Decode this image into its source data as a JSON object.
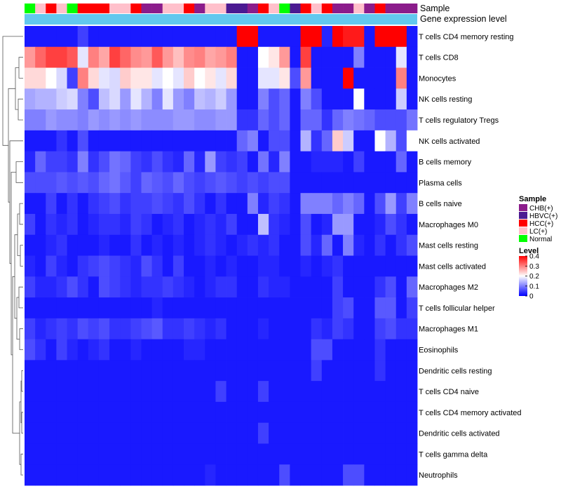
{
  "chart_data": {
    "type": "heatmap",
    "top_tracks": [
      "Sample",
      "Gene expression level"
    ],
    "gene_expression_level_color": "#62c8ee",
    "sample_colors": {
      "CHB(+)": "#8b1c8b",
      "HBVC(+)": "#4b1a92",
      "HCC(+)": "#ff0000",
      "LC(+)": "#ffc0cb",
      "Normal": "#00ff00"
    },
    "samples": [
      "Normal",
      "LC(+)",
      "HCC(+)",
      "LC(+)",
      "Normal",
      "HCC(+)",
      "HCC(+)",
      "HCC(+)",
      "LC(+)",
      "LC(+)",
      "HCC(+)",
      "CHB(+)",
      "CHB(+)",
      "LC(+)",
      "LC(+)",
      "HCC(+)",
      "CHB(+)",
      "LC(+)",
      "LC(+)",
      "HBVC(+)",
      "HBVC(+)",
      "CHB(+)",
      "HCC(+)",
      "LC(+)",
      "Normal",
      "HBVC(+)",
      "HCC(+)",
      "LC(+)",
      "HCC(+)",
      "CHB(+)",
      "CHB(+)",
      "LC(+)",
      "CHB(+)",
      "HCC(+)",
      "CHB(+)",
      "CHB(+)",
      "CHB(+)"
    ],
    "rows": [
      "T cells CD4 memory resting",
      "T cells CD8",
      "Monocytes",
      "NK cells resting",
      "T cells regulatory  Tregs",
      "NK cells activated",
      "B cells memory",
      "Plasma cells",
      "B cells naive",
      "Macrophages M0",
      "Mast cells resting",
      "Mast cells activated",
      "Macrophages M2",
      "T cells follicular helper",
      "Macrophages M1",
      "Eosinophils",
      "Dendritic cells resting",
      "T cells CD4 naive",
      "T cells CD4 memory activated",
      "Dendritic cells activated",
      "T cells gamma delta",
      "Neutrophils"
    ],
    "values": [
      [
        0.02,
        0.02,
        0.02,
        0.02,
        0.02,
        0.05,
        0.02,
        0.02,
        0.02,
        0.02,
        0.02,
        0.02,
        0.02,
        0.02,
        0.02,
        0.02,
        0.02,
        0.02,
        0.02,
        0.02,
        0.4,
        0.4,
        0.02,
        0.02,
        0.02,
        0.02,
        0.4,
        0.4,
        0.03,
        0.4,
        0.38,
        0.38,
        0.02,
        0.4,
        0.4,
        0.4,
        0.02
      ],
      [
        0.28,
        0.32,
        0.35,
        0.35,
        0.33,
        0.18,
        0.3,
        0.27,
        0.35,
        0.32,
        0.29,
        0.28,
        0.33,
        0.28,
        0.25,
        0.29,
        0.3,
        0.27,
        0.28,
        0.3,
        0.02,
        0.02,
        0.2,
        0.22,
        0.28,
        0.02,
        0.35,
        0.02,
        0.02,
        0.02,
        0.02,
        0.1,
        0.02,
        0.02,
        0.02,
        0.18,
        0.02
      ],
      [
        0.23,
        0.23,
        0.2,
        0.17,
        0.05,
        0.3,
        0.23,
        0.18,
        0.17,
        0.24,
        0.22,
        0.22,
        0.18,
        0.2,
        0.18,
        0.24,
        0.2,
        0.22,
        0.18,
        0.23,
        0.02,
        0.02,
        0.18,
        0.18,
        0.22,
        0.06,
        0.28,
        0.02,
        0.02,
        0.02,
        0.4,
        0.02,
        0.02,
        0.02,
        0.02,
        0.3,
        0.02
      ],
      [
        0.13,
        0.14,
        0.14,
        0.16,
        0.17,
        0.1,
        0.06,
        0.15,
        0.17,
        0.12,
        0.18,
        0.14,
        0.1,
        0.18,
        0.12,
        0.1,
        0.15,
        0.14,
        0.16,
        0.12,
        0.02,
        0.02,
        0.1,
        0.06,
        0.08,
        0.02,
        0.1,
        0.06,
        0.02,
        0.02,
        0.02,
        0.2,
        0.02,
        0.02,
        0.02,
        0.16,
        0.02
      ],
      [
        0.1,
        0.1,
        0.12,
        0.11,
        0.11,
        0.1,
        0.12,
        0.11,
        0.12,
        0.11,
        0.12,
        0.11,
        0.11,
        0.11,
        0.12,
        0.12,
        0.11,
        0.11,
        0.12,
        0.12,
        0.04,
        0.04,
        0.08,
        0.06,
        0.08,
        0.02,
        0.08,
        0.08,
        0.04,
        0.08,
        0.1,
        0.09,
        0.08,
        0.06,
        0.06,
        0.06,
        0.09
      ],
      [
        0.02,
        0.02,
        0.02,
        0.04,
        0.02,
        0.06,
        0.02,
        0.02,
        0.02,
        0.02,
        0.02,
        0.02,
        0.02,
        0.02,
        0.02,
        0.02,
        0.02,
        0.02,
        0.02,
        0.02,
        0.08,
        0.1,
        0.02,
        0.06,
        0.06,
        0.02,
        0.14,
        0.04,
        0.08,
        0.24,
        0.16,
        0.02,
        0.02,
        0.2,
        0.14,
        0.06,
        0.2
      ],
      [
        0.03,
        0.08,
        0.05,
        0.05,
        0.04,
        0.1,
        0.04,
        0.06,
        0.09,
        0.08,
        0.05,
        0.04,
        0.06,
        0.04,
        0.03,
        0.08,
        0.03,
        0.12,
        0.05,
        0.04,
        0.05,
        0.02,
        0.09,
        0.03,
        0.1,
        0.02,
        0.02,
        0.03,
        0.03,
        0.03,
        0.02,
        0.05,
        0.02,
        0.02,
        0.02,
        0.08,
        0.02
      ],
      [
        0.06,
        0.06,
        0.06,
        0.07,
        0.06,
        0.07,
        0.06,
        0.08,
        0.09,
        0.07,
        0.05,
        0.08,
        0.07,
        0.06,
        0.08,
        0.06,
        0.05,
        0.06,
        0.07,
        0.06,
        0.05,
        0.06,
        0.05,
        0.06,
        0.06,
        0.02,
        0.02,
        0.02,
        0.02,
        0.02,
        0.02,
        0.02,
        0.02,
        0.02,
        0.02,
        0.02,
        0.02
      ],
      [
        0.02,
        0.02,
        0.05,
        0.02,
        0.04,
        0.02,
        0.04,
        0.05,
        0.06,
        0.04,
        0.05,
        0.05,
        0.06,
        0.05,
        0.04,
        0.06,
        0.04,
        0.02,
        0.04,
        0.02,
        0.02,
        0.1,
        0.03,
        0.05,
        0.04,
        0.02,
        0.1,
        0.1,
        0.1,
        0.08,
        0.1,
        0.08,
        0.02,
        0.06,
        0.12,
        0.05,
        0.1
      ],
      [
        0.05,
        0.02,
        0.04,
        0.03,
        0.04,
        0.02,
        0.03,
        0.04,
        0.04,
        0.03,
        0.05,
        0.04,
        0.02,
        0.03,
        0.04,
        0.02,
        0.03,
        0.04,
        0.03,
        0.05,
        0.02,
        0.02,
        0.15,
        0.04,
        0.03,
        0.02,
        0.06,
        0.02,
        0.03,
        0.12,
        0.12,
        0.02,
        0.02,
        0.03,
        0.06,
        0.04,
        0.02
      ],
      [
        0.02,
        0.02,
        0.03,
        0.04,
        0.02,
        0.02,
        0.02,
        0.03,
        0.02,
        0.02,
        0.04,
        0.02,
        0.03,
        0.02,
        0.03,
        0.02,
        0.03,
        0.04,
        0.03,
        0.02,
        0.03,
        0.04,
        0.03,
        0.04,
        0.02,
        0.02,
        0.06,
        0.03,
        0.08,
        0.02,
        0.1,
        0.03,
        0.02,
        0.04,
        0.02,
        0.04,
        0.06
      ],
      [
        0.03,
        0.02,
        0.05,
        0.03,
        0.02,
        0.04,
        0.05,
        0.06,
        0.05,
        0.04,
        0.03,
        0.06,
        0.04,
        0.02,
        0.05,
        0.02,
        0.02,
        0.03,
        0.02,
        0.03,
        0.02,
        0.02,
        0.03,
        0.03,
        0.02,
        0.02,
        0.03,
        0.02,
        0.03,
        0.04,
        0.02,
        0.02,
        0.02,
        0.02,
        0.02,
        0.02,
        0.02
      ],
      [
        0.05,
        0.03,
        0.03,
        0.04,
        0.06,
        0.04,
        0.02,
        0.06,
        0.05,
        0.04,
        0.03,
        0.04,
        0.04,
        0.05,
        0.04,
        0.03,
        0.02,
        0.03,
        0.04,
        0.04,
        0.02,
        0.02,
        0.04,
        0.03,
        0.03,
        0.02,
        0.02,
        0.02,
        0.02,
        0.05,
        0.02,
        0.02,
        0.02,
        0.04,
        0.06,
        0.02,
        0.08
      ],
      [
        0.02,
        0.02,
        0.02,
        0.02,
        0.02,
        0.02,
        0.02,
        0.02,
        0.02,
        0.02,
        0.02,
        0.02,
        0.03,
        0.02,
        0.02,
        0.02,
        0.02,
        0.02,
        0.02,
        0.02,
        0.02,
        0.02,
        0.02,
        0.02,
        0.02,
        0.02,
        0.02,
        0.02,
        0.02,
        0.05,
        0.06,
        0.02,
        0.02,
        0.07,
        0.07,
        0.02,
        0.05
      ],
      [
        0.05,
        0.03,
        0.04,
        0.05,
        0.04,
        0.06,
        0.05,
        0.06,
        0.04,
        0.04,
        0.05,
        0.06,
        0.07,
        0.04,
        0.04,
        0.05,
        0.04,
        0.03,
        0.04,
        0.02,
        0.02,
        0.02,
        0.03,
        0.02,
        0.02,
        0.02,
        0.02,
        0.04,
        0.03,
        0.05,
        0.04,
        0.02,
        0.02,
        0.05,
        0.06,
        0.04,
        0.04
      ],
      [
        0.06,
        0.04,
        0.02,
        0.05,
        0.03,
        0.02,
        0.03,
        0.04,
        0.02,
        0.02,
        0.03,
        0.02,
        0.02,
        0.02,
        0.02,
        0.03,
        0.03,
        0.02,
        0.02,
        0.02,
        0.02,
        0.02,
        0.02,
        0.02,
        0.02,
        0.02,
        0.02,
        0.06,
        0.06,
        0.02,
        0.02,
        0.02,
        0.02,
        0.04,
        0.02,
        0.02,
        0.02
      ],
      [
        0.02,
        0.02,
        0.02,
        0.02,
        0.02,
        0.02,
        0.02,
        0.02,
        0.02,
        0.02,
        0.02,
        0.02,
        0.02,
        0.02,
        0.02,
        0.02,
        0.02,
        0.02,
        0.02,
        0.02,
        0.02,
        0.02,
        0.02,
        0.02,
        0.02,
        0.02,
        0.02,
        0.05,
        0.02,
        0.02,
        0.02,
        0.02,
        0.02,
        0.04,
        0.02,
        0.02,
        0.02
      ],
      [
        0.02,
        0.02,
        0.02,
        0.02,
        0.02,
        0.02,
        0.02,
        0.02,
        0.02,
        0.02,
        0.02,
        0.02,
        0.02,
        0.02,
        0.02,
        0.02,
        0.02,
        0.02,
        0.05,
        0.02,
        0.02,
        0.02,
        0.05,
        0.02,
        0.02,
        0.02,
        0.02,
        0.02,
        0.02,
        0.02,
        0.02,
        0.02,
        0.02,
        0.02,
        0.02,
        0.02,
        0.02
      ],
      [
        0.02,
        0.02,
        0.02,
        0.02,
        0.02,
        0.02,
        0.02,
        0.02,
        0.02,
        0.02,
        0.02,
        0.02,
        0.02,
        0.02,
        0.02,
        0.02,
        0.02,
        0.02,
        0.02,
        0.02,
        0.02,
        0.02,
        0.02,
        0.02,
        0.02,
        0.02,
        0.02,
        0.02,
        0.02,
        0.02,
        0.02,
        0.02,
        0.02,
        0.02,
        0.02,
        0.02,
        0.02
      ],
      [
        0.02,
        0.02,
        0.02,
        0.02,
        0.02,
        0.02,
        0.02,
        0.02,
        0.02,
        0.02,
        0.02,
        0.02,
        0.02,
        0.02,
        0.02,
        0.02,
        0.02,
        0.02,
        0.02,
        0.02,
        0.02,
        0.02,
        0.05,
        0.02,
        0.02,
        0.02,
        0.02,
        0.02,
        0.02,
        0.02,
        0.02,
        0.02,
        0.02,
        0.02,
        0.02,
        0.02,
        0.02
      ],
      [
        0.02,
        0.02,
        0.02,
        0.02,
        0.02,
        0.02,
        0.02,
        0.02,
        0.02,
        0.02,
        0.02,
        0.02,
        0.02,
        0.02,
        0.02,
        0.02,
        0.02,
        0.02,
        0.02,
        0.02,
        0.02,
        0.02,
        0.02,
        0.02,
        0.02,
        0.02,
        0.02,
        0.02,
        0.02,
        0.02,
        0.02,
        0.02,
        0.02,
        0.02,
        0.02,
        0.02,
        0.02
      ],
      [
        0.02,
        0.02,
        0.02,
        0.02,
        0.02,
        0.02,
        0.02,
        0.02,
        0.02,
        0.02,
        0.02,
        0.02,
        0.02,
        0.02,
        0.02,
        0.02,
        0.02,
        0.03,
        0.02,
        0.02,
        0.02,
        0.02,
        0.02,
        0.02,
        0.06,
        0.02,
        0.02,
        0.02,
        0.02,
        0.02,
        0.06,
        0.06,
        0.02,
        0.02,
        0.02,
        0.02,
        0.02
      ]
    ],
    "color_scale": {
      "range": [
        0,
        0.4
      ],
      "stops": [
        "#0000ff",
        "#ffffff",
        "#ff0000"
      ]
    },
    "legends": {
      "sample_title": "Sample",
      "sample_items": [
        "CHB(+)",
        "HBVC(+)",
        "HCC(+)",
        "LC(+)",
        "Normal"
      ],
      "level_title": "Level",
      "level_ticks": [
        "0.4",
        "0.3",
        "0.2",
        "0.1",
        "0"
      ],
      "level_tick_values": [
        0.4,
        0.3,
        0.2,
        0.1,
        0
      ]
    }
  }
}
